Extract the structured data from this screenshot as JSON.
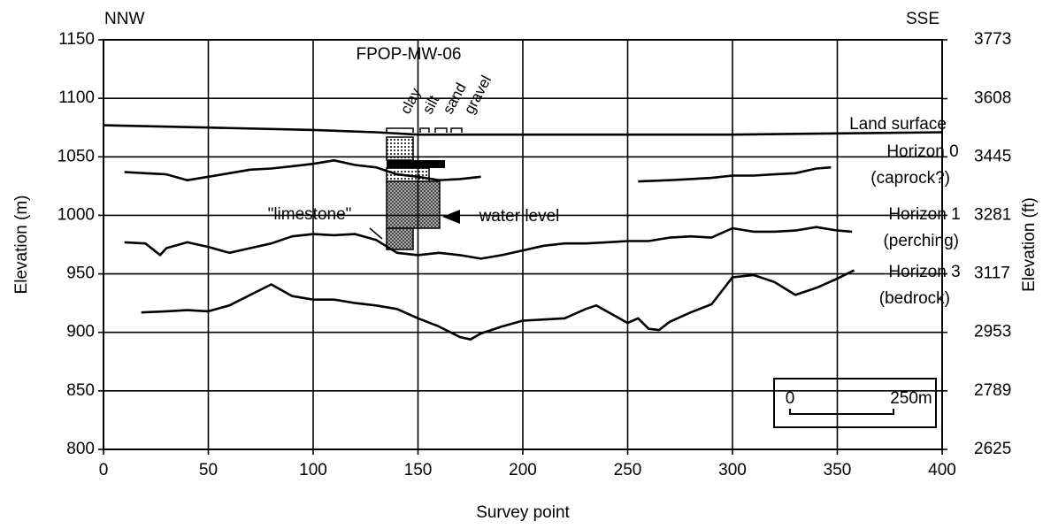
{
  "chart_data": {
    "type": "line",
    "x_label": "Survey point",
    "y_label": "Elevation (m)",
    "y2_label": "Elevation (ft)",
    "xlim": [
      0,
      400
    ],
    "xticks": [
      0,
      50,
      100,
      150,
      200,
      250,
      300,
      350,
      400
    ],
    "ylim": [
      800,
      1150
    ],
    "yticks": [
      800,
      850,
      900,
      950,
      1000,
      1050,
      1100,
      1150
    ],
    "y2lim": [
      2625,
      3773
    ],
    "y2ticks": [
      2625,
      2789,
      2953,
      3117,
      3281,
      3445,
      3608,
      3773
    ],
    "grid": true,
    "series": [
      {
        "name": "Land surface",
        "color": "#000000",
        "x": [
          0,
          50,
          100,
          130,
          150,
          200,
          250,
          300,
          350,
          400
        ],
        "values": [
          1077,
          1075,
          1073,
          1071,
          1069,
          1069,
          1069,
          1069,
          1070,
          1071
        ]
      },
      {
        "name": "Horizon 0",
        "color": "#000000",
        "x": [
          10,
          20,
          30,
          40,
          50,
          60,
          70,
          80,
          90,
          100,
          110,
          120,
          130,
          140,
          150,
          160,
          170,
          180,
          220,
          255,
          270,
          280,
          290,
          300,
          310,
          320,
          330,
          340,
          347
        ],
        "values": [
          1037,
          1036,
          1035,
          1030,
          1033,
          1036,
          1039,
          1040,
          1042,
          1044,
          1047,
          1043,
          1041,
          1035,
          1033,
          1030,
          1031,
          1033,
          null,
          1029,
          1030,
          1031,
          1032,
          1034,
          1034,
          1035,
          1036,
          1040,
          1041
        ]
      },
      {
        "name": "Horizon 1",
        "color": "#000000",
        "x": [
          10,
          20,
          27,
          30,
          40,
          50,
          60,
          70,
          80,
          90,
          100,
          110,
          120,
          130,
          140,
          150,
          160,
          170,
          180,
          190,
          200,
          210,
          220,
          230,
          240,
          250,
          260,
          270,
          280,
          290,
          300,
          310,
          320,
          330,
          340,
          350,
          357
        ],
        "values": [
          977,
          976,
          966,
          972,
          977,
          973,
          968,
          972,
          976,
          982,
          984,
          983,
          984,
          979,
          968,
          966,
          968,
          966,
          963,
          966,
          970,
          974,
          976,
          976,
          977,
          978,
          978,
          981,
          982,
          981,
          989,
          986,
          986,
          987,
          990,
          987,
          986
        ]
      },
      {
        "name": "Horizon 3",
        "color": "#000000",
        "x": [
          18,
          30,
          40,
          50,
          60,
          70,
          80,
          90,
          100,
          110,
          120,
          130,
          140,
          150,
          160,
          170,
          175,
          180,
          190,
          200,
          210,
          220,
          230,
          235,
          240,
          250,
          255,
          260,
          265,
          270,
          280,
          290,
          300,
          310,
          320,
          330,
          340,
          350,
          358
        ],
        "values": [
          917,
          918,
          919,
          918,
          923,
          932,
          941,
          931,
          928,
          928,
          925,
          923,
          920,
          912,
          905,
          896,
          894,
          899,
          905,
          910,
          911,
          912,
          920,
          923,
          918,
          908,
          912,
          903,
          902,
          909,
          917,
          924,
          947,
          949,
          943,
          932,
          938,
          946,
          953
        ]
      }
    ],
    "annotations": [
      "NNW",
      "SSE",
      "FPOP-MW-06",
      "clay",
      "silt",
      "sand",
      "gravel",
      "(caprock?)",
      "(perching)",
      "(bedrock)",
      "\"limestone\"",
      "water level",
      "0",
      "250m"
    ]
  }
}
